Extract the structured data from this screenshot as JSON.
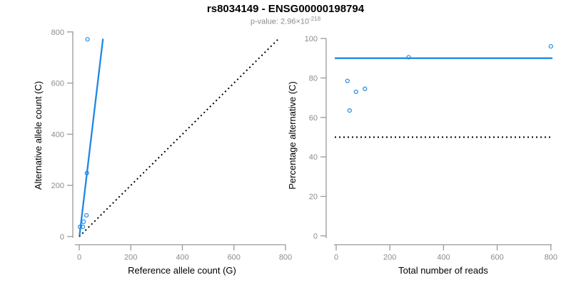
{
  "header": {
    "title": "rs8034149 - ENSG00000198794",
    "pvalue_label": "p-value: ",
    "pvalue_mantissa": "2.96×10",
    "pvalue_exponent": "-218"
  },
  "colors": {
    "accent_blue": "#1E88E5",
    "axis_line": "#999999",
    "tick_label": "#8C8C8C",
    "subtitle_gray": "#8C8C8C",
    "reference_black": "#000000"
  },
  "chart_data": [
    {
      "name": "allele-counts-scatter",
      "type": "scatter",
      "title": "rs8034149 - ENSG00000198794",
      "subtitle": "p-value: 2.96×10⁻²¹⁸",
      "xlabel": "Reference allele count (G)",
      "ylabel": "Alternative allele count (C)",
      "xlim": [
        0,
        800
      ],
      "ylim": [
        0,
        800
      ],
      "xticks": [
        0,
        200,
        400,
        600,
        800
      ],
      "yticks": [
        0,
        200,
        400,
        600,
        800
      ],
      "grid": false,
      "legend": null,
      "point_style": "open-circle",
      "points": [
        [
          32,
          771
        ],
        [
          30,
          248
        ],
        [
          28,
          83
        ],
        [
          17,
          58
        ],
        [
          14,
          38
        ],
        [
          3,
          38
        ]
      ],
      "fit_line": {
        "style": "solid",
        "from": [
          1,
          3
        ],
        "to": [
          92,
          773
        ]
      },
      "reference_line": {
        "style": "dotted",
        "from": [
          0,
          0
        ],
        "to": [
          772,
          772
        ]
      }
    },
    {
      "name": "percentage-alternative-scatter",
      "type": "scatter",
      "xlabel": "Total number of reads",
      "ylabel": "Percentage alternative (C)",
      "xlim": [
        0,
        800
      ],
      "ylim": [
        0,
        100
      ],
      "xticks": [
        0,
        200,
        400,
        600,
        800
      ],
      "yticks": [
        0,
        20,
        40,
        60,
        80,
        100
      ],
      "grid": false,
      "legend": null,
      "point_style": "open-circle",
      "points": [
        [
          42,
          78.5
        ],
        [
          50,
          63.5
        ],
        [
          74,
          73
        ],
        [
          107,
          74.5
        ],
        [
          270,
          90.5
        ],
        [
          800,
          96
        ]
      ],
      "fit_line": {
        "style": "solid",
        "y": 90
      },
      "reference_line": {
        "style": "dotted",
        "y": 50
      }
    }
  ]
}
